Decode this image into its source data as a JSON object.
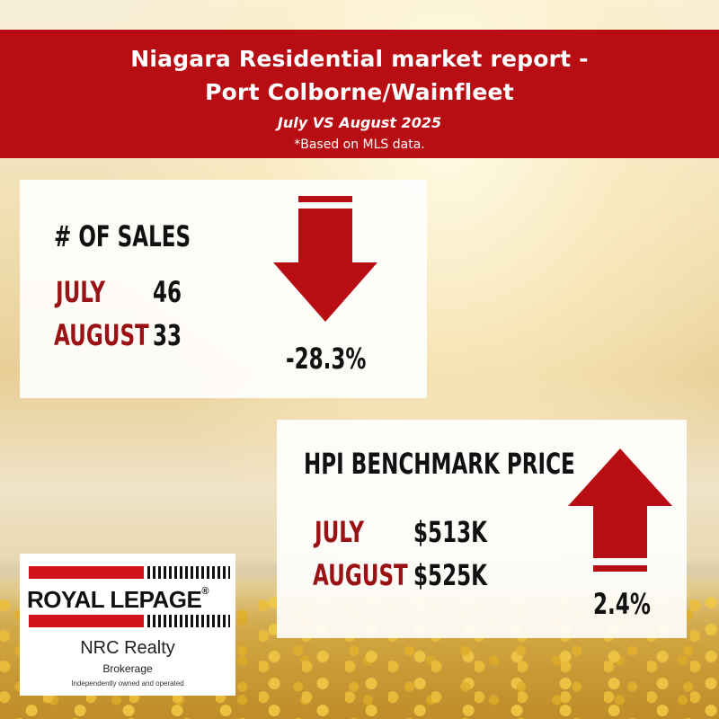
{
  "header": {
    "title_line1": "Niagara Residential market report -",
    "title_line2": "Port Colborne/Wainfleet",
    "period": "July VS August 2025",
    "source_note": "*Based on MLS data."
  },
  "sales": {
    "title": "# OF SALES",
    "rows": [
      {
        "label": "JULY",
        "value": "46"
      },
      {
        "label": "AUGUST",
        "value": "33"
      }
    ],
    "change": "-28.3%",
    "direction": "down",
    "arrow_color": "#b80d12"
  },
  "hpi": {
    "title": "HPI BENCHMARK PRICE",
    "rows": [
      {
        "label": "JULY",
        "value": "$513K"
      },
      {
        "label": "AUGUST",
        "value": "$525K"
      }
    ],
    "change": "2.4%",
    "direction": "up",
    "arrow_color": "#b80d12"
  },
  "brand": {
    "wordmark": "ROYAL LEPAGE",
    "registered_mark": "®",
    "office_name": "NRC Realty",
    "type": "Brokerage",
    "tagline": "Independently owned and operated",
    "accent_color": "#d2121b"
  }
}
